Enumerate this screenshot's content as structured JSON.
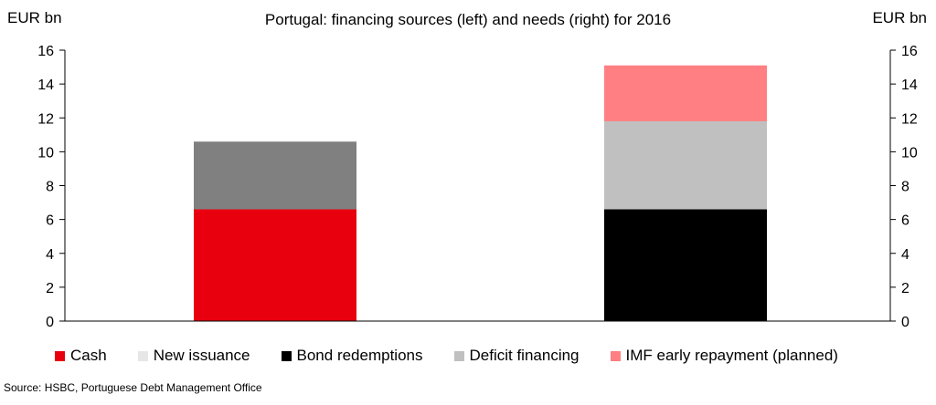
{
  "chart_data": {
    "type": "bar",
    "stacked": true,
    "title": "Portugal: financing sources (left) and needs (right) for 2016",
    "ylabel_left": "EUR bn",
    "ylabel_right": "EUR bn",
    "ylim": [
      0,
      16
    ],
    "yticks": [
      "0",
      "2",
      "4",
      "6",
      "8",
      "10",
      "12",
      "14",
      "16"
    ],
    "bars": [
      {
        "segments": [
          {
            "series": "Cash",
            "value": 6.6,
            "color": "#e8000f"
          },
          {
            "series": "New issuance",
            "value": 4.0,
            "color": "#808080"
          }
        ]
      },
      {
        "segments": [
          {
            "series": "Bond redemptions",
            "value": 6.6,
            "color": "#000000"
          },
          {
            "series": "Deficit financing",
            "value": 5.2,
            "color": "#c0c0c0"
          },
          {
            "series": "IMF early repayment (planned)",
            "value": 3.3,
            "color": "#ff7f82"
          }
        ]
      }
    ],
    "legend": [
      {
        "name": "Cash",
        "color": "#e8000f"
      },
      {
        "name": "New issuance",
        "color": "#e6e6e6"
      },
      {
        "name": "Bond redemptions",
        "color": "#000000"
      },
      {
        "name": "Deficit financing",
        "color": "#c0c0c0"
      },
      {
        "name": "IMF early repayment (planned)",
        "color": "#ff7f82"
      }
    ],
    "legend_position": "bottom"
  },
  "source": "Source: HSBC, Portuguese Debt Management Office"
}
